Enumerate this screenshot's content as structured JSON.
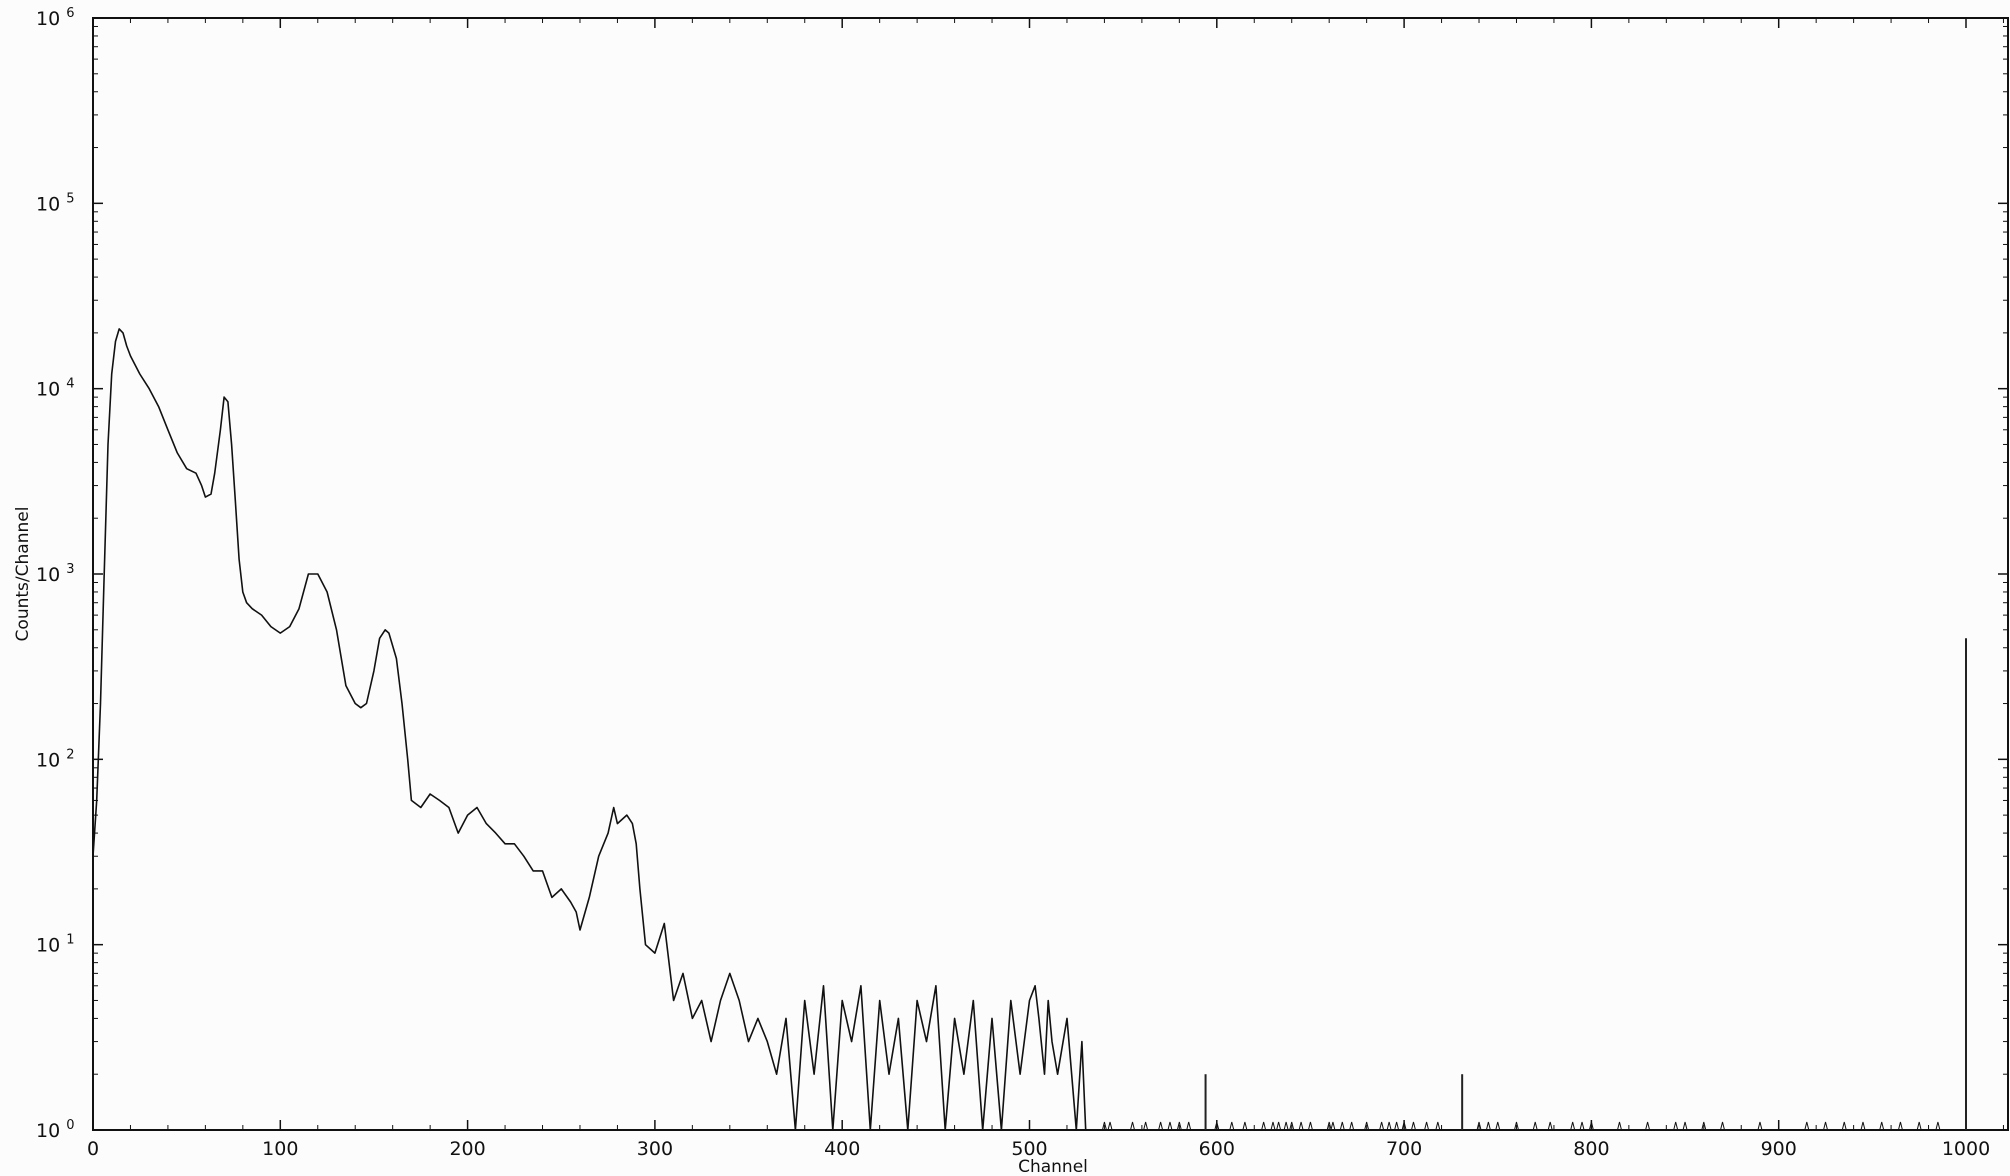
{
  "chart_data": {
    "type": "line",
    "title": "",
    "xlabel": "Channel",
    "ylabel": "Counts/Channel",
    "xlim": [
      0,
      1024
    ],
    "ylim": [
      1,
      1000000
    ],
    "yscale": "log",
    "grid": false,
    "legend": "none",
    "line_color": "#111111",
    "xticks": [
      {
        "value": 0,
        "label": "0"
      },
      {
        "value": 100,
        "label": "100"
      },
      {
        "value": 200,
        "label": "200"
      },
      {
        "value": 300,
        "label": "300"
      },
      {
        "value": 400,
        "label": "400"
      },
      {
        "value": 500,
        "label": "500"
      },
      {
        "value": 600,
        "label": "600"
      },
      {
        "value": 700,
        "label": "700"
      },
      {
        "value": 800,
        "label": "800"
      },
      {
        "value": 900,
        "label": "900"
      },
      {
        "value": 1000,
        "label": "1000"
      }
    ],
    "yticks": [
      {
        "value": 1,
        "base": "10",
        "exp": "0"
      },
      {
        "value": 10,
        "base": "10",
        "exp": "1"
      },
      {
        "value": 100,
        "base": "10",
        "exp": "2"
      },
      {
        "value": 1000,
        "base": "10",
        "exp": "3"
      },
      {
        "value": 10000,
        "base": "10",
        "exp": "4"
      },
      {
        "value": 100000,
        "base": "10",
        "exp": "5"
      },
      {
        "value": 1000000,
        "base": "10",
        "exp": "6"
      }
    ],
    "series": [
      {
        "x": [
          0,
          2,
          4,
          6,
          8,
          10,
          12,
          14,
          16,
          18,
          20,
          25,
          30,
          35,
          40,
          45,
          50,
          55,
          58,
          60,
          63,
          65,
          68,
          70,
          72,
          74,
          76,
          78,
          80,
          82,
          85,
          90,
          95,
          100,
          105,
          110,
          115,
          120,
          125,
          130,
          135,
          140,
          143,
          146,
          150,
          153,
          156,
          158,
          162,
          165,
          168,
          170,
          175,
          180,
          185,
          190,
          195,
          200,
          205,
          210,
          215,
          220,
          225,
          230,
          235,
          240,
          245,
          250,
          255,
          258,
          260,
          265,
          270,
          275,
          278,
          280,
          285,
          288,
          290,
          292,
          295,
          300,
          305,
          310,
          315,
          320,
          325,
          330,
          335,
          340,
          345,
          350,
          355,
          360,
          365,
          370,
          375,
          380,
          385,
          390,
          395,
          400,
          405,
          410,
          415,
          420,
          425,
          430,
          435,
          440,
          445,
          450,
          455,
          460,
          465,
          470,
          475,
          480,
          485,
          490,
          495,
          500,
          503,
          505,
          508,
          510,
          512,
          515,
          520,
          525,
          528,
          530
        ],
        "y": [
          30,
          60,
          200,
          1000,
          5000,
          12000,
          18000,
          21000,
          20000,
          17000,
          15000,
          12000,
          10000,
          8000,
          6000,
          4500,
          3700,
          3500,
          3000,
          2600,
          2700,
          3500,
          6000,
          9000,
          8500,
          5000,
          2500,
          1200,
          800,
          700,
          650,
          600,
          520,
          480,
          520,
          650,
          1000,
          1000,
          800,
          500,
          250,
          200,
          190,
          200,
          300,
          450,
          500,
          480,
          350,
          200,
          100,
          60,
          55,
          65,
          60,
          55,
          40,
          50,
          55,
          45,
          40,
          35,
          35,
          30,
          25,
          25,
          18,
          20,
          17,
          15,
          12,
          18,
          30,
          40,
          55,
          45,
          50,
          45,
          35,
          20,
          10,
          9,
          13,
          5,
          7,
          4,
          5,
          3,
          5,
          7,
          5,
          3,
          4,
          3,
          2,
          4,
          1,
          5,
          2,
          6,
          1,
          5,
          3,
          6,
          1,
          5,
          2,
          4,
          1,
          5,
          3,
          6,
          1,
          4,
          2,
          5,
          1,
          4,
          1,
          5,
          2,
          5,
          6,
          4,
          2,
          5,
          3,
          2,
          4,
          1,
          3,
          1
        ]
      }
    ],
    "spikes": [
      {
        "x": 594,
        "y": 2
      },
      {
        "x": 731,
        "y": 2
      },
      {
        "x": 1000,
        "y": 450
      }
    ],
    "sparse_counts": [
      540,
      543,
      555,
      562,
      570,
      575,
      580,
      585,
      600,
      608,
      615,
      625,
      630,
      633,
      637,
      640,
      645,
      650,
      660,
      662,
      667,
      672,
      680,
      688,
      692,
      696,
      700,
      705,
      712,
      718,
      740,
      745,
      750,
      760,
      770,
      778,
      790,
      795,
      800,
      815,
      830,
      845,
      850,
      860,
      870,
      890,
      915,
      925,
      935,
      945,
      955,
      965,
      975,
      985
    ]
  }
}
